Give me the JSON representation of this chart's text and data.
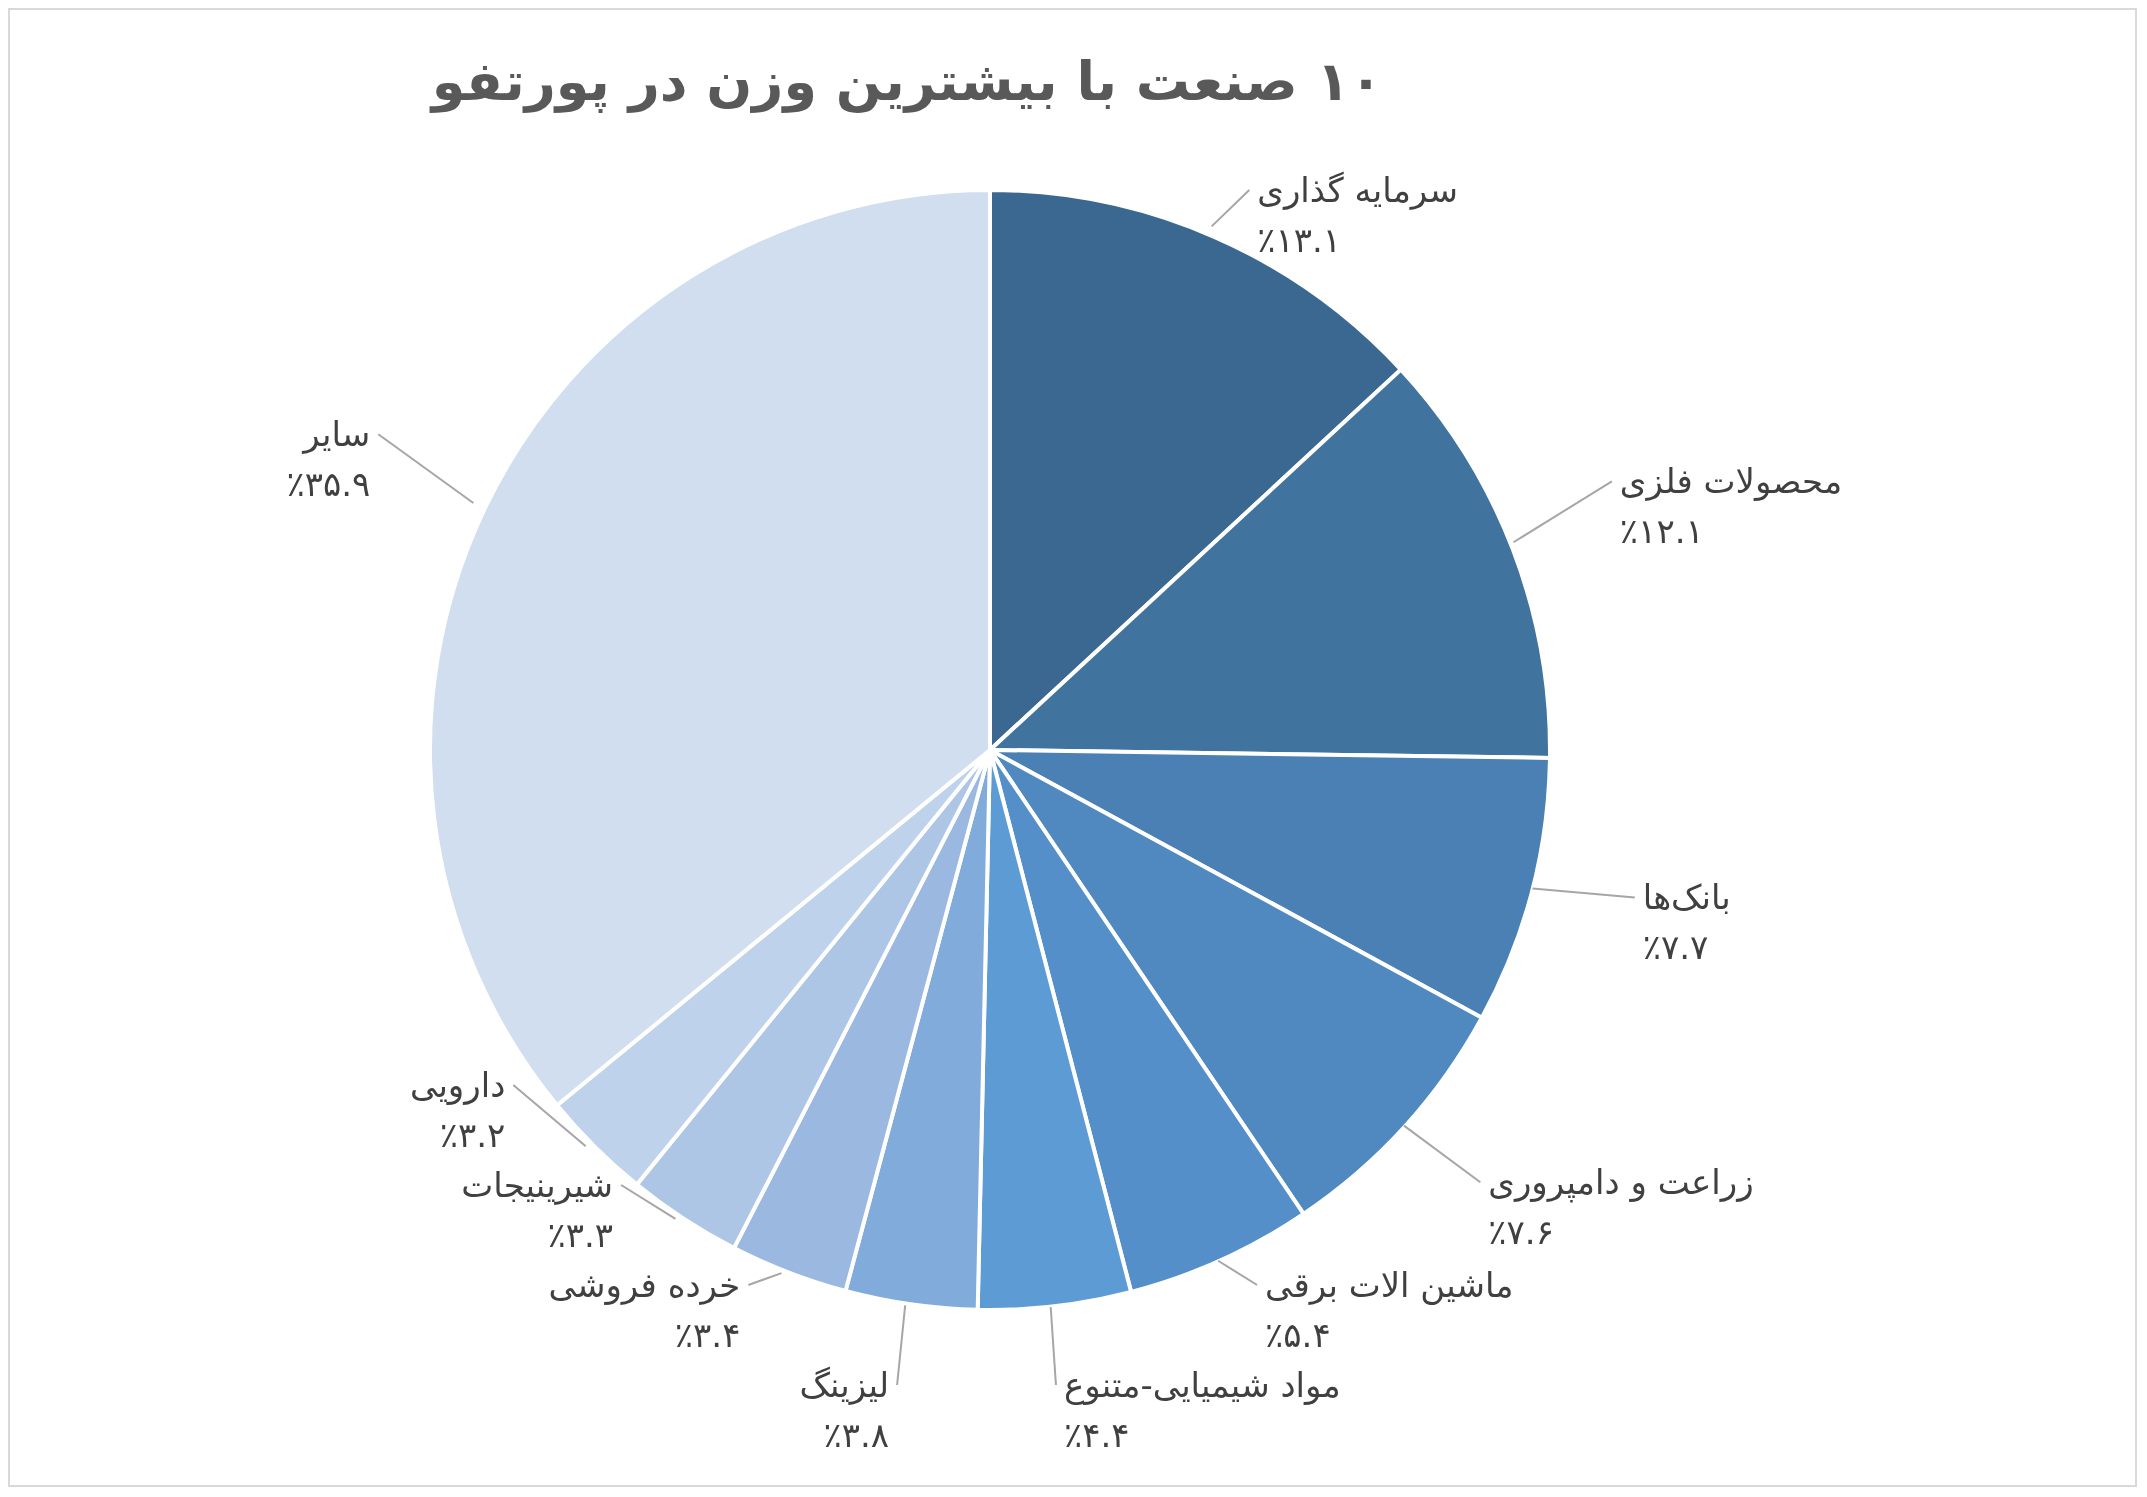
{
  "chart_data": {
    "type": "pie",
    "title": "۱۰ صنعت با بیشترین وزن در پورتفو",
    "categories": [
      "سرمایه گذاری",
      "محصولات فلزی",
      "بانک‌ها",
      "زراعت و دامپروری",
      "ماشین الات برقی",
      "مواد شیمیایی-متنوع",
      "لیزینگ",
      "خرده فروشی",
      "شیرینیجات",
      "دارویی",
      "سایر"
    ],
    "values": [
      13.1,
      12.1,
      7.7,
      7.6,
      5.4,
      4.4,
      3.8,
      3.4,
      3.3,
      3.2,
      35.9
    ],
    "colors": [
      "#3b6891",
      "#41739f",
      "#4a80b3",
      "#4f89c0",
      "#548fc9",
      "#5d9bd5",
      "#80abdb",
      "#9bb9e0",
      "#adc6e6",
      "#bfd2eb",
      "#d1deef"
    ],
    "value_labels": [
      "٪۱۳.۱",
      "٪۱۲.۱",
      "٪۷.۷",
      "٪۷.۶",
      "٪۵.۴",
      "٪۴.۴",
      "٪۳.۸",
      "٪۳.۴",
      "٪۳.۳",
      "٪۳.۲",
      "٪۳۵.۹"
    ],
    "legend": false
  }
}
